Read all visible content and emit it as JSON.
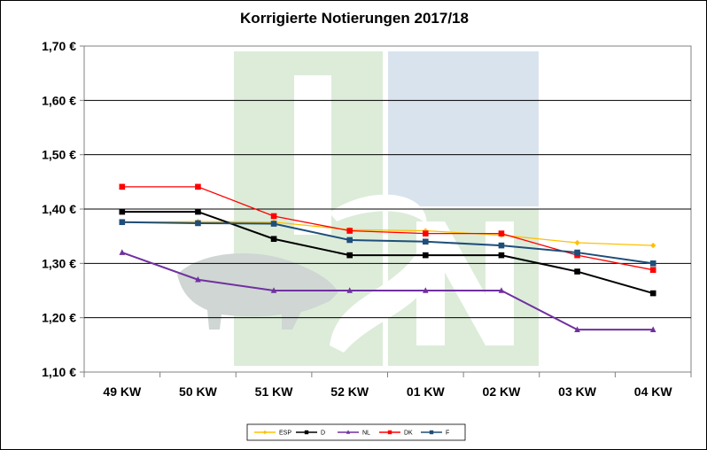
{
  "chart_data": {
    "type": "line",
    "title": "Korrigierte Notierungen 2017/18",
    "categories": [
      "49 KW",
      "50 KW",
      "51 KW",
      "52 KW",
      "01 KW",
      "02 KW",
      "03 KW",
      "04 KW"
    ],
    "ylim": [
      1.1,
      1.7
    ],
    "yticks": [
      1.1,
      1.2,
      1.3,
      1.4,
      1.5,
      1.6,
      1.7
    ],
    "ytick_labels": [
      "1,10 €",
      "1,20 €",
      "1,30 €",
      "1,40 €",
      "1,50 €",
      "1,60 €",
      "1,70 €"
    ],
    "grid": true,
    "legend_position": "bottom",
    "watermark": "ISN",
    "series": [
      {
        "name": "ESP",
        "color": "#FFC000",
        "marker": "diamond",
        "values": [
          1.375,
          1.377,
          1.376,
          1.362,
          1.36,
          1.352,
          1.338,
          1.333
        ]
      },
      {
        "name": "D",
        "color": "#000000",
        "marker": "square",
        "values": [
          1.395,
          1.395,
          1.345,
          1.315,
          1.315,
          1.315,
          1.285,
          1.245
        ]
      },
      {
        "name": "NL",
        "color": "#7030A0",
        "marker": "triangle",
        "values": [
          1.32,
          1.27,
          1.25,
          1.25,
          1.25,
          1.25,
          1.178,
          1.178
        ]
      },
      {
        "name": "DK",
        "color": "#FF0000",
        "marker": "square",
        "values": [
          1.441,
          1.441,
          1.387,
          1.36,
          1.355,
          1.355,
          1.315,
          1.288
        ]
      },
      {
        "name": "F",
        "color": "#1F4E79",
        "marker": "square",
        "values": [
          1.376,
          1.374,
          1.373,
          1.343,
          1.34,
          1.333,
          1.32,
          1.3
        ]
      }
    ]
  }
}
